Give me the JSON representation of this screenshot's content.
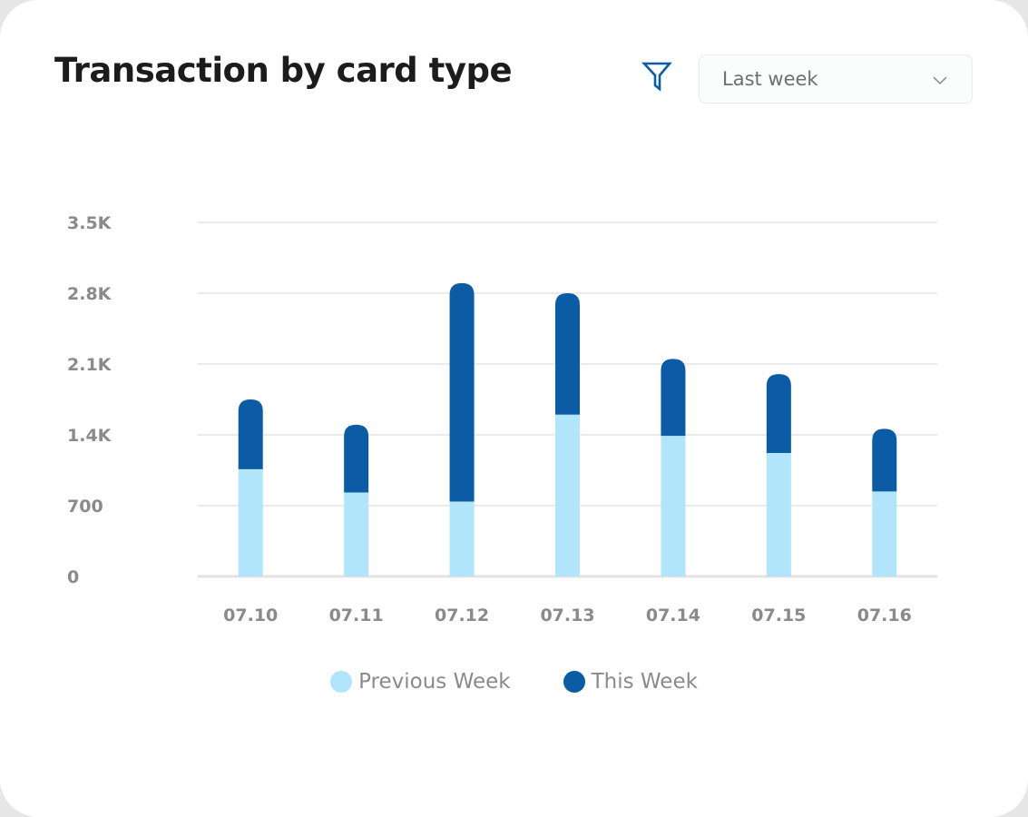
{
  "header": {
    "title": "Transaction by card type",
    "filter_icon": "filter-icon",
    "period_select": {
      "value": "Last week",
      "icon": "chevron-down-icon"
    }
  },
  "chart_data": {
    "type": "bar",
    "stacked": true,
    "categories": [
      "07.10",
      "07.11",
      "07.12",
      "07.13",
      "07.14",
      "07.15",
      "07.16"
    ],
    "series": [
      {
        "name": "Previous Week",
        "color": "#b1e5fb",
        "values": [
          1060,
          830,
          740,
          1600,
          1390,
          1220,
          840
        ]
      },
      {
        "name": "This Week",
        "color": "#0b5ca4",
        "values": [
          690,
          670,
          2160,
          1200,
          760,
          780,
          620
        ]
      }
    ],
    "yticks": [
      "0",
      "700",
      "1.4K",
      "2.1K",
      "2.8K",
      "3.5K"
    ],
    "ylim": [
      0,
      3500
    ],
    "grid": true,
    "legend": "bottom"
  }
}
